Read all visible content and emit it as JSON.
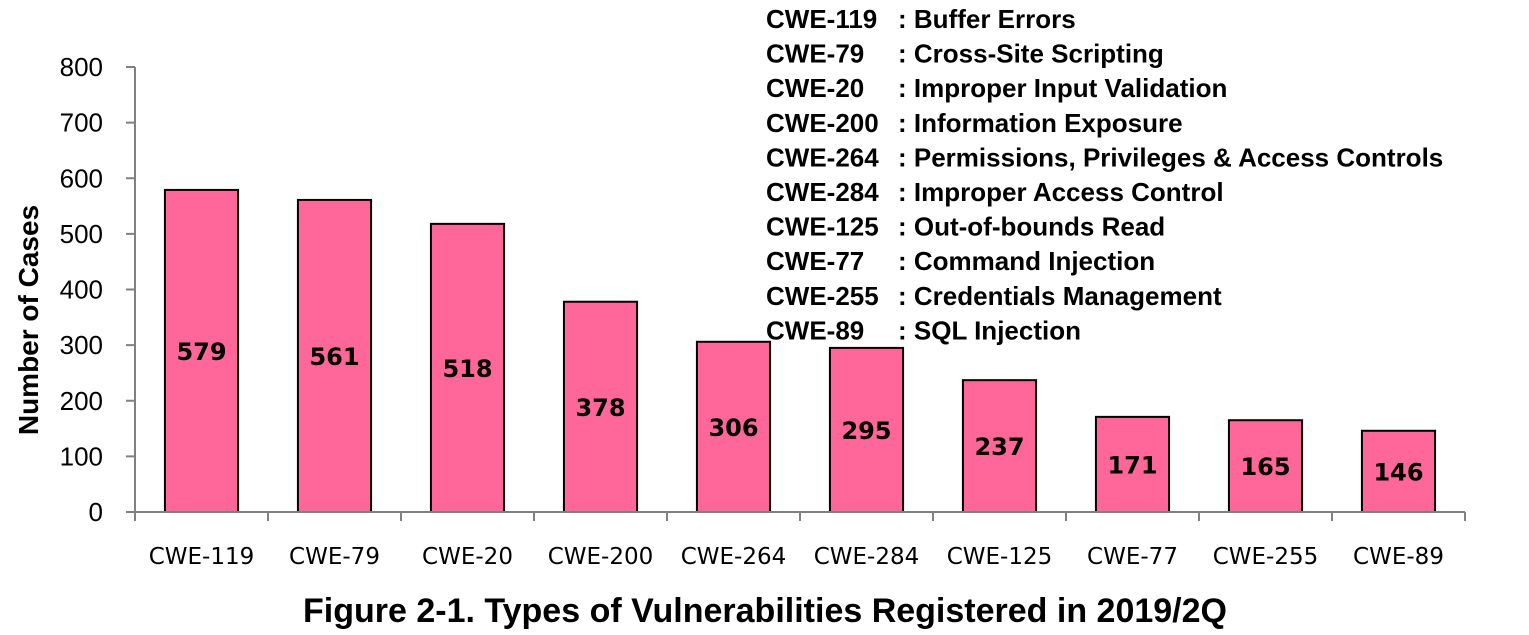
{
  "chart_data": {
    "type": "bar",
    "title": "Figure 2-1. Types of Vulnerabilities Registered in 2019/2Q",
    "xlabel": "",
    "ylabel": "Number of Cases",
    "ylim": [
      0,
      800
    ],
    "yticks": [
      0,
      100,
      200,
      300,
      400,
      500,
      600,
      700,
      800
    ],
    "categories": [
      "CWE-119",
      "CWE-79",
      "CWE-20",
      "CWE-200",
      "CWE-264",
      "CWE-284",
      "CWE-125",
      "CWE-77",
      "CWE-255",
      "CWE-89"
    ],
    "values": [
      579,
      561,
      518,
      378,
      306,
      295,
      237,
      171,
      165,
      146
    ],
    "bar_color": "#ff6699",
    "grid": false,
    "legend_placement": "top-right",
    "legend": [
      {
        "code": "CWE-119",
        "desc": ": Buffer Errors"
      },
      {
        "code": "CWE-79",
        "desc": ": Cross-Site Scripting"
      },
      {
        "code": "CWE-20",
        "desc": ": Improper Input Validation"
      },
      {
        "code": "CWE-200",
        "desc": ": Information Exposure"
      },
      {
        "code": "CWE-264",
        "desc": ": Permissions, Privileges & Access Controls"
      },
      {
        "code": "CWE-284",
        "desc": ": Improper Access Control"
      },
      {
        "code": "CWE-125",
        "desc": ": Out-of-bounds Read"
      },
      {
        "code": "CWE-77",
        "desc": ": Command Injection"
      },
      {
        "code": "CWE-255",
        "desc": ": Credentials Management"
      },
      {
        "code": "CWE-89",
        "desc": ": SQL Injection"
      }
    ]
  }
}
